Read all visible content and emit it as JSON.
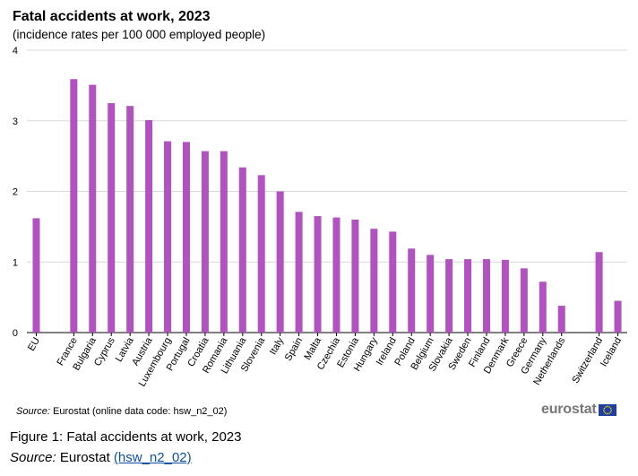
{
  "header": {
    "title": "Fatal accidents at work, 2023",
    "subtitle": "(incidence rates per 100 000 employed people)"
  },
  "source": {
    "label": "Source:",
    "text": "Eurostat (online data code: hsw_n2_02)"
  },
  "logo": {
    "text": "eurostat",
    "flag": "eu-flag-icon"
  },
  "figure_caption": "Figure 1: Fatal accidents at work, 2023",
  "figure_source": {
    "label": "Source:",
    "text": "Eurostat",
    "link_text": "(hsw_n2_02)"
  },
  "colors": {
    "bar": "#b152c0",
    "grid": "#d9d9d9",
    "axis": "#000000",
    "link": "#0d4fa8"
  },
  "chart_data": {
    "type": "bar",
    "title": "Fatal accidents at work, 2023",
    "subtitle": "(incidence rates per 100 000 employed people)",
    "xlabel": "",
    "ylabel": "",
    "ylim": [
      0,
      4
    ],
    "yticks": [
      0,
      1,
      2,
      3,
      4
    ],
    "grid": true,
    "legend": "none",
    "categories": [
      "EU",
      "France",
      "Bulgaria",
      "Cyprus",
      "Latvia",
      "Austria",
      "Luxembourg",
      "Portugal",
      "Croatia",
      "Romania",
      "Lithuania",
      "Slovenia",
      "Italy",
      "Spain",
      "Malta",
      "Czechia",
      "Estonia",
      "Hungary",
      "Ireland",
      "Poland",
      "Belgium",
      "Slovakia",
      "Sweden",
      "Finland",
      "Denmark",
      "Greece",
      "Germany",
      "Netherlands",
      "Switzerland",
      "Iceland"
    ],
    "values": [
      1.62,
      3.59,
      3.51,
      3.25,
      3.21,
      3.01,
      2.71,
      2.7,
      2.57,
      2.57,
      2.34,
      2.23,
      2.0,
      1.71,
      1.65,
      1.63,
      1.6,
      1.47,
      1.43,
      1.19,
      1.1,
      1.04,
      1.04,
      1.04,
      1.03,
      0.91,
      0.72,
      0.38,
      1.14,
      0.45
    ],
    "gap_after": [
      "EU",
      "Netherlands"
    ]
  }
}
